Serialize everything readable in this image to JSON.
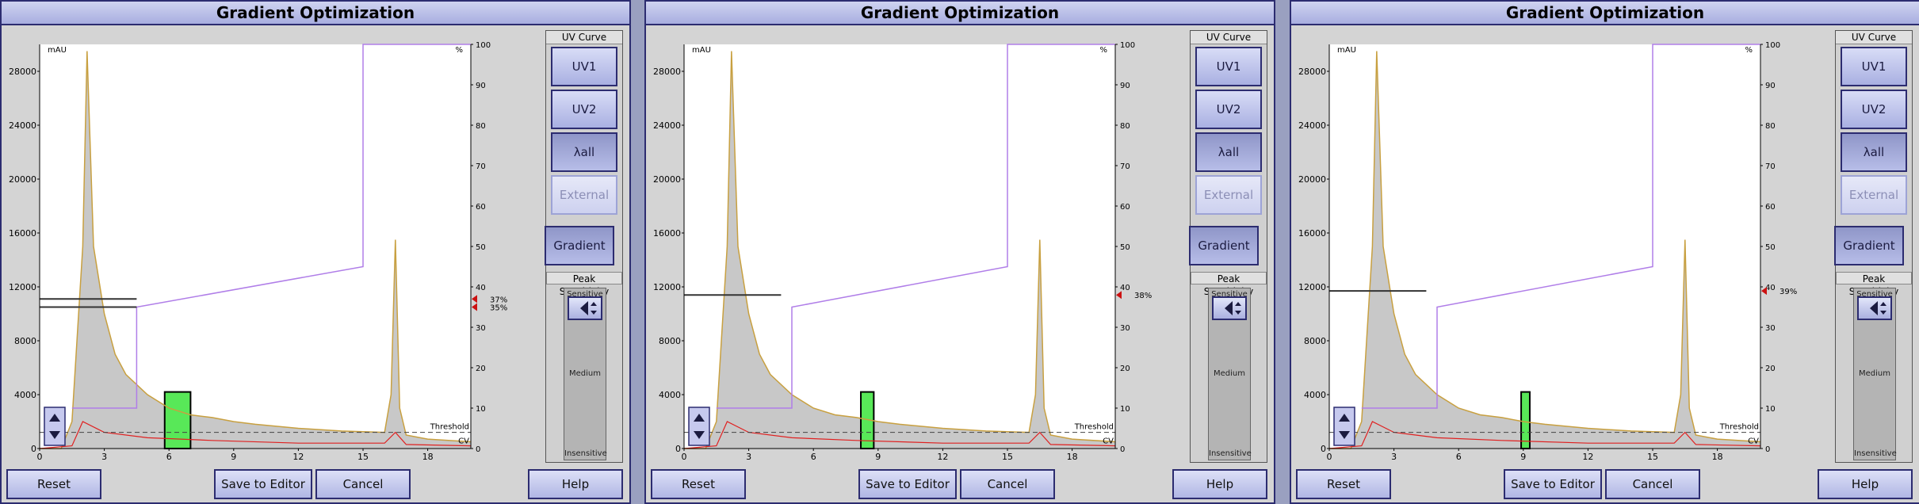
{
  "window_title": "Gradient Optimization",
  "y_axis": {
    "unit": "mAU",
    "ticks": [
      "0",
      "4000",
      "8000",
      "12000",
      "16000",
      "20000",
      "24000",
      "28000"
    ]
  },
  "x_axis": {
    "ticks": [
      "0",
      "3",
      "6",
      "9",
      "12",
      "15",
      "18"
    ]
  },
  "y2_axis": {
    "unit": "%",
    "ticks": [
      "0",
      "10",
      "20",
      "30",
      "40",
      "50",
      "60",
      "70",
      "80",
      "90",
      "100"
    ]
  },
  "labels": {
    "threshold": "Threshold",
    "cv": "CV"
  },
  "uv_curve": {
    "title": "UV Curve",
    "uv1": "UV1",
    "uv2": "UV2",
    "lambda_all": "λall",
    "external": "External"
  },
  "gradient_button": "Gradient",
  "peak_sensitivity": {
    "title": "Peak Sensitivity",
    "sensitive": "Sensitive",
    "medium": "Medium",
    "insensitive": "Insensitive"
  },
  "buttons": {
    "reset": "Reset",
    "save_to_editor": "Save to Editor",
    "cancel": "Cancel",
    "help": "Help"
  },
  "colors": {
    "gradient_line": "#b07ee8",
    "uv_curve": "#c8a040",
    "cv_curve": "#e02020",
    "selected_peak": "#58e858",
    "marker": "#cc1111"
  },
  "panels": [
    {
      "markers": [
        {
          "label": "37%",
          "pct": 37
        },
        {
          "label": "35%",
          "pct": 35
        }
      ],
      "chart_data": {
        "type": "line",
        "x": [
          0,
          1,
          1.5,
          2,
          2.2,
          2.5,
          3,
          3.5,
          4,
          5,
          6,
          7,
          8,
          9,
          10,
          12,
          14,
          16,
          16.3,
          16.5,
          16.7,
          17,
          18,
          20
        ],
        "y": [
          0,
          0,
          2000,
          15000,
          29500,
          15000,
          10000,
          7000,
          5500,
          4000,
          3000,
          2500,
          2300,
          2000,
          1800,
          1500,
          1300,
          1200,
          4000,
          15500,
          3000,
          1000,
          700,
          500
        ],
        "gradient_segments": [
          [
            1.5,
            10
          ],
          [
            4.5,
            10
          ],
          [
            4.5,
            35
          ],
          [
            15,
            45
          ],
          [
            15,
            100
          ],
          [
            20,
            100
          ]
        ],
        "hold_levels_pct": [
          37,
          35
        ],
        "selected_peak_x": [
          5.8,
          7.0
        ],
        "xlim": [
          0,
          20
        ],
        "ylim": [
          0,
          30000
        ],
        "y2lim": [
          0,
          100
        ]
      }
    },
    {
      "markers": [
        {
          "label": "38%",
          "pct": 38
        }
      ],
      "chart_data": {
        "type": "line",
        "x": [
          0,
          1,
          1.5,
          2,
          2.2,
          2.5,
          3,
          3.5,
          4,
          5,
          6,
          7,
          8,
          9,
          10,
          12,
          14,
          16,
          16.3,
          16.5,
          16.7,
          17,
          18,
          20
        ],
        "y": [
          0,
          0,
          2000,
          15000,
          29500,
          15000,
          10000,
          7000,
          5500,
          4000,
          3000,
          2500,
          2300,
          2000,
          1800,
          1500,
          1300,
          1200,
          4000,
          15500,
          3000,
          1000,
          700,
          500
        ],
        "gradient_segments": [
          [
            1.5,
            10
          ],
          [
            5,
            10
          ],
          [
            5,
            35
          ],
          [
            15,
            45
          ],
          [
            15,
            100
          ],
          [
            20,
            100
          ]
        ],
        "hold_levels_pct": [
          38
        ],
        "selected_peak_x": [
          8.2,
          8.8
        ],
        "xlim": [
          0,
          20
        ],
        "ylim": [
          0,
          30000
        ],
        "y2lim": [
          0,
          100
        ]
      }
    },
    {
      "markers": [
        {
          "label": "39%",
          "pct": 39
        }
      ],
      "chart_data": {
        "type": "line",
        "x": [
          0,
          1,
          1.5,
          2,
          2.2,
          2.5,
          3,
          3.5,
          4,
          5,
          6,
          7,
          8,
          9,
          10,
          12,
          14,
          16,
          16.3,
          16.5,
          16.7,
          17,
          18,
          20
        ],
        "y": [
          0,
          0,
          2000,
          15000,
          29500,
          15000,
          10000,
          7000,
          5500,
          4000,
          3000,
          2500,
          2300,
          2000,
          1800,
          1500,
          1300,
          1200,
          4000,
          15500,
          3000,
          1000,
          700,
          500
        ],
        "gradient_segments": [
          [
            1.5,
            10
          ],
          [
            5,
            10
          ],
          [
            5,
            35
          ],
          [
            15,
            45
          ],
          [
            15,
            100
          ],
          [
            20,
            100
          ]
        ],
        "hold_levels_pct": [
          39
        ],
        "selected_peak_x": [
          8.9,
          9.3
        ],
        "xlim": [
          0,
          20
        ],
        "ylim": [
          0,
          30000
        ],
        "y2lim": [
          0,
          100
        ]
      }
    }
  ]
}
